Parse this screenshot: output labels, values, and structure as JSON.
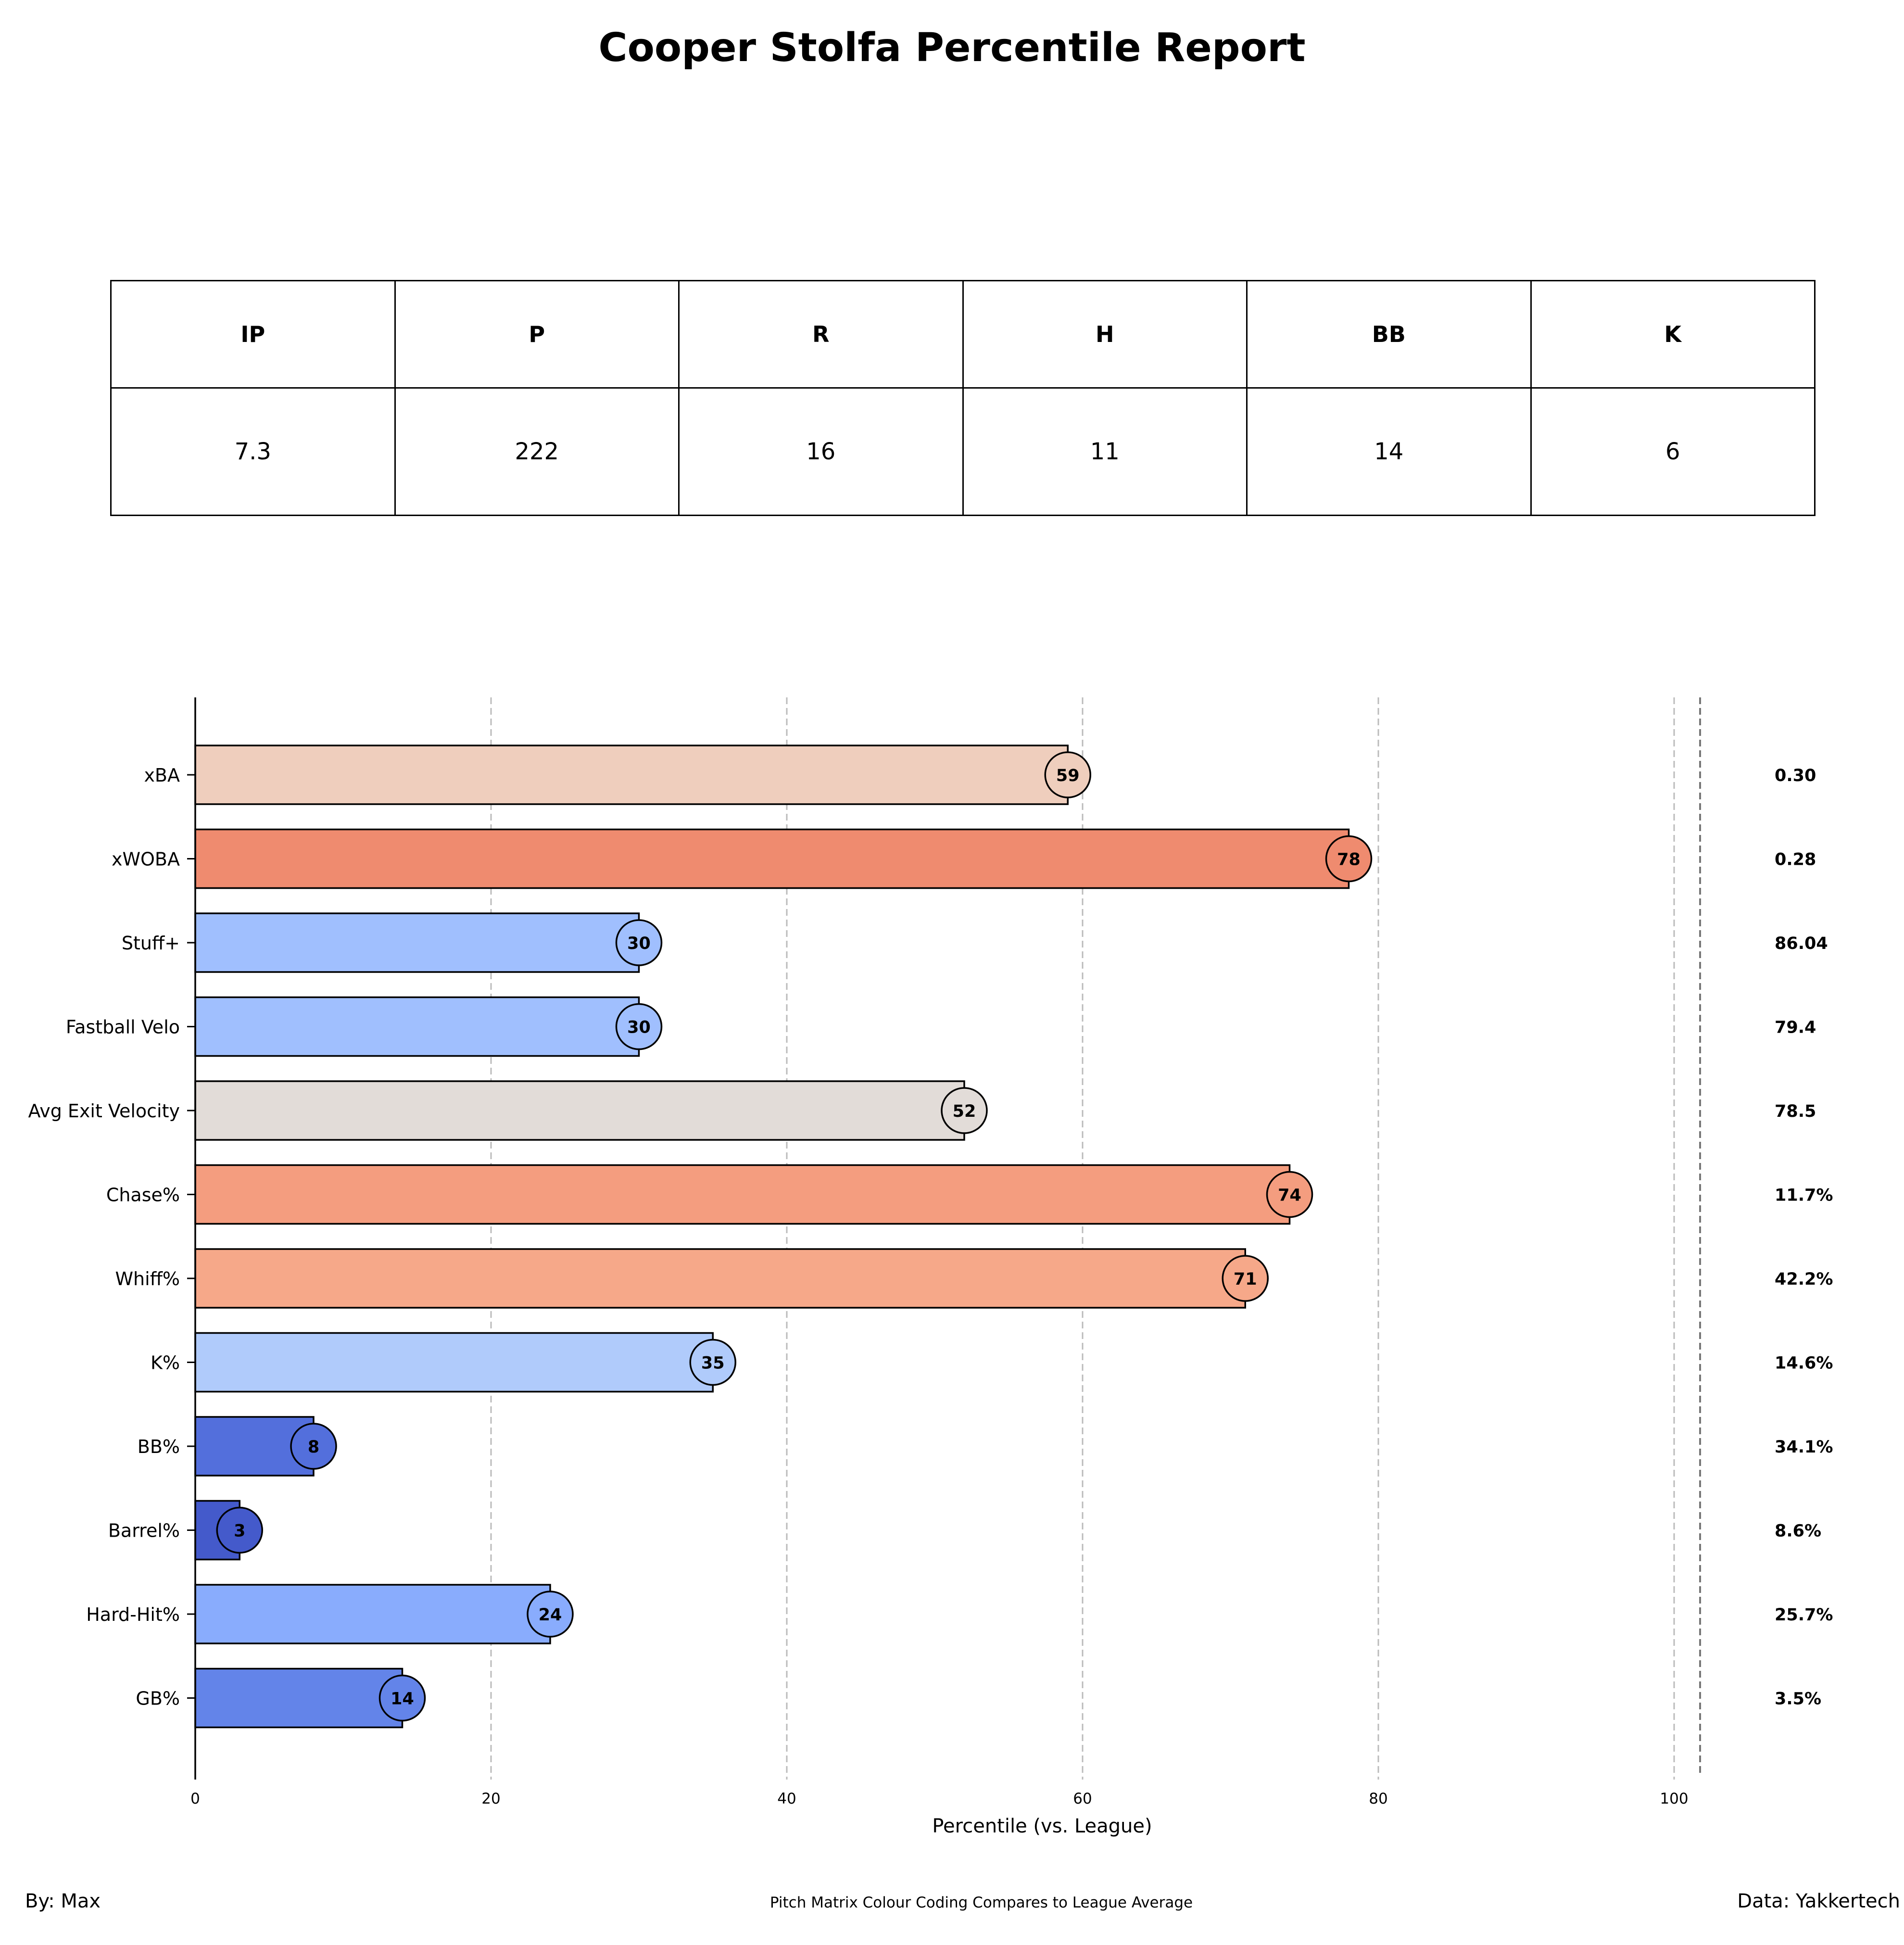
{
  "title": "Cooper Stolfa Percentile Report",
  "stats_table": {
    "headers": [
      "IP",
      "P",
      "R",
      "H",
      "BB",
      "K"
    ],
    "values": [
      "7.3",
      "222",
      "16",
      "11",
      "14",
      "6"
    ]
  },
  "chart_data": {
    "type": "bar",
    "orientation": "horizontal",
    "xlabel": "Percentile (vs. League)",
    "xlim": [
      0,
      110
    ],
    "xticks": [
      0,
      20,
      40,
      60,
      80,
      100
    ],
    "grid": "vertical dashed",
    "categories": [
      "xBA",
      "xWOBA",
      "Stuff+",
      "Fastball Velo",
      "Avg Exit Velocity",
      "Chase%",
      "Whiff%",
      "K%",
      "BB%",
      "Barrel%",
      "Hard-Hit%",
      "GB%"
    ],
    "values": [
      59,
      78,
      30,
      30,
      52,
      74,
      71,
      35,
      8,
      3,
      24,
      14
    ],
    "bar_labels": [
      "59",
      "78",
      "30",
      "30",
      "52",
      "74",
      "71",
      "35",
      "8",
      "3",
      "24",
      "14"
    ],
    "stat_values": [
      "0.30",
      "0.28",
      "86.04",
      "79.4",
      "78.5",
      "11.7%",
      "42.2%",
      "14.6%",
      "34.1%",
      "8.6%",
      "25.7%",
      "3.5%"
    ],
    "colors": [
      "#efcebd",
      "#ef8b6f",
      "#a0bffe",
      "#a0bffe",
      "#e2dcd8",
      "#f49d7f",
      "#f6a889",
      "#b0cbfb",
      "#536fdc",
      "#445acb",
      "#89acfd",
      "#6384e9"
    ]
  },
  "footer": {
    "left": "By: Max",
    "center": "Pitch Matrix Colour Coding Compares to League Average",
    "right": "Data: Yakkertech"
  }
}
